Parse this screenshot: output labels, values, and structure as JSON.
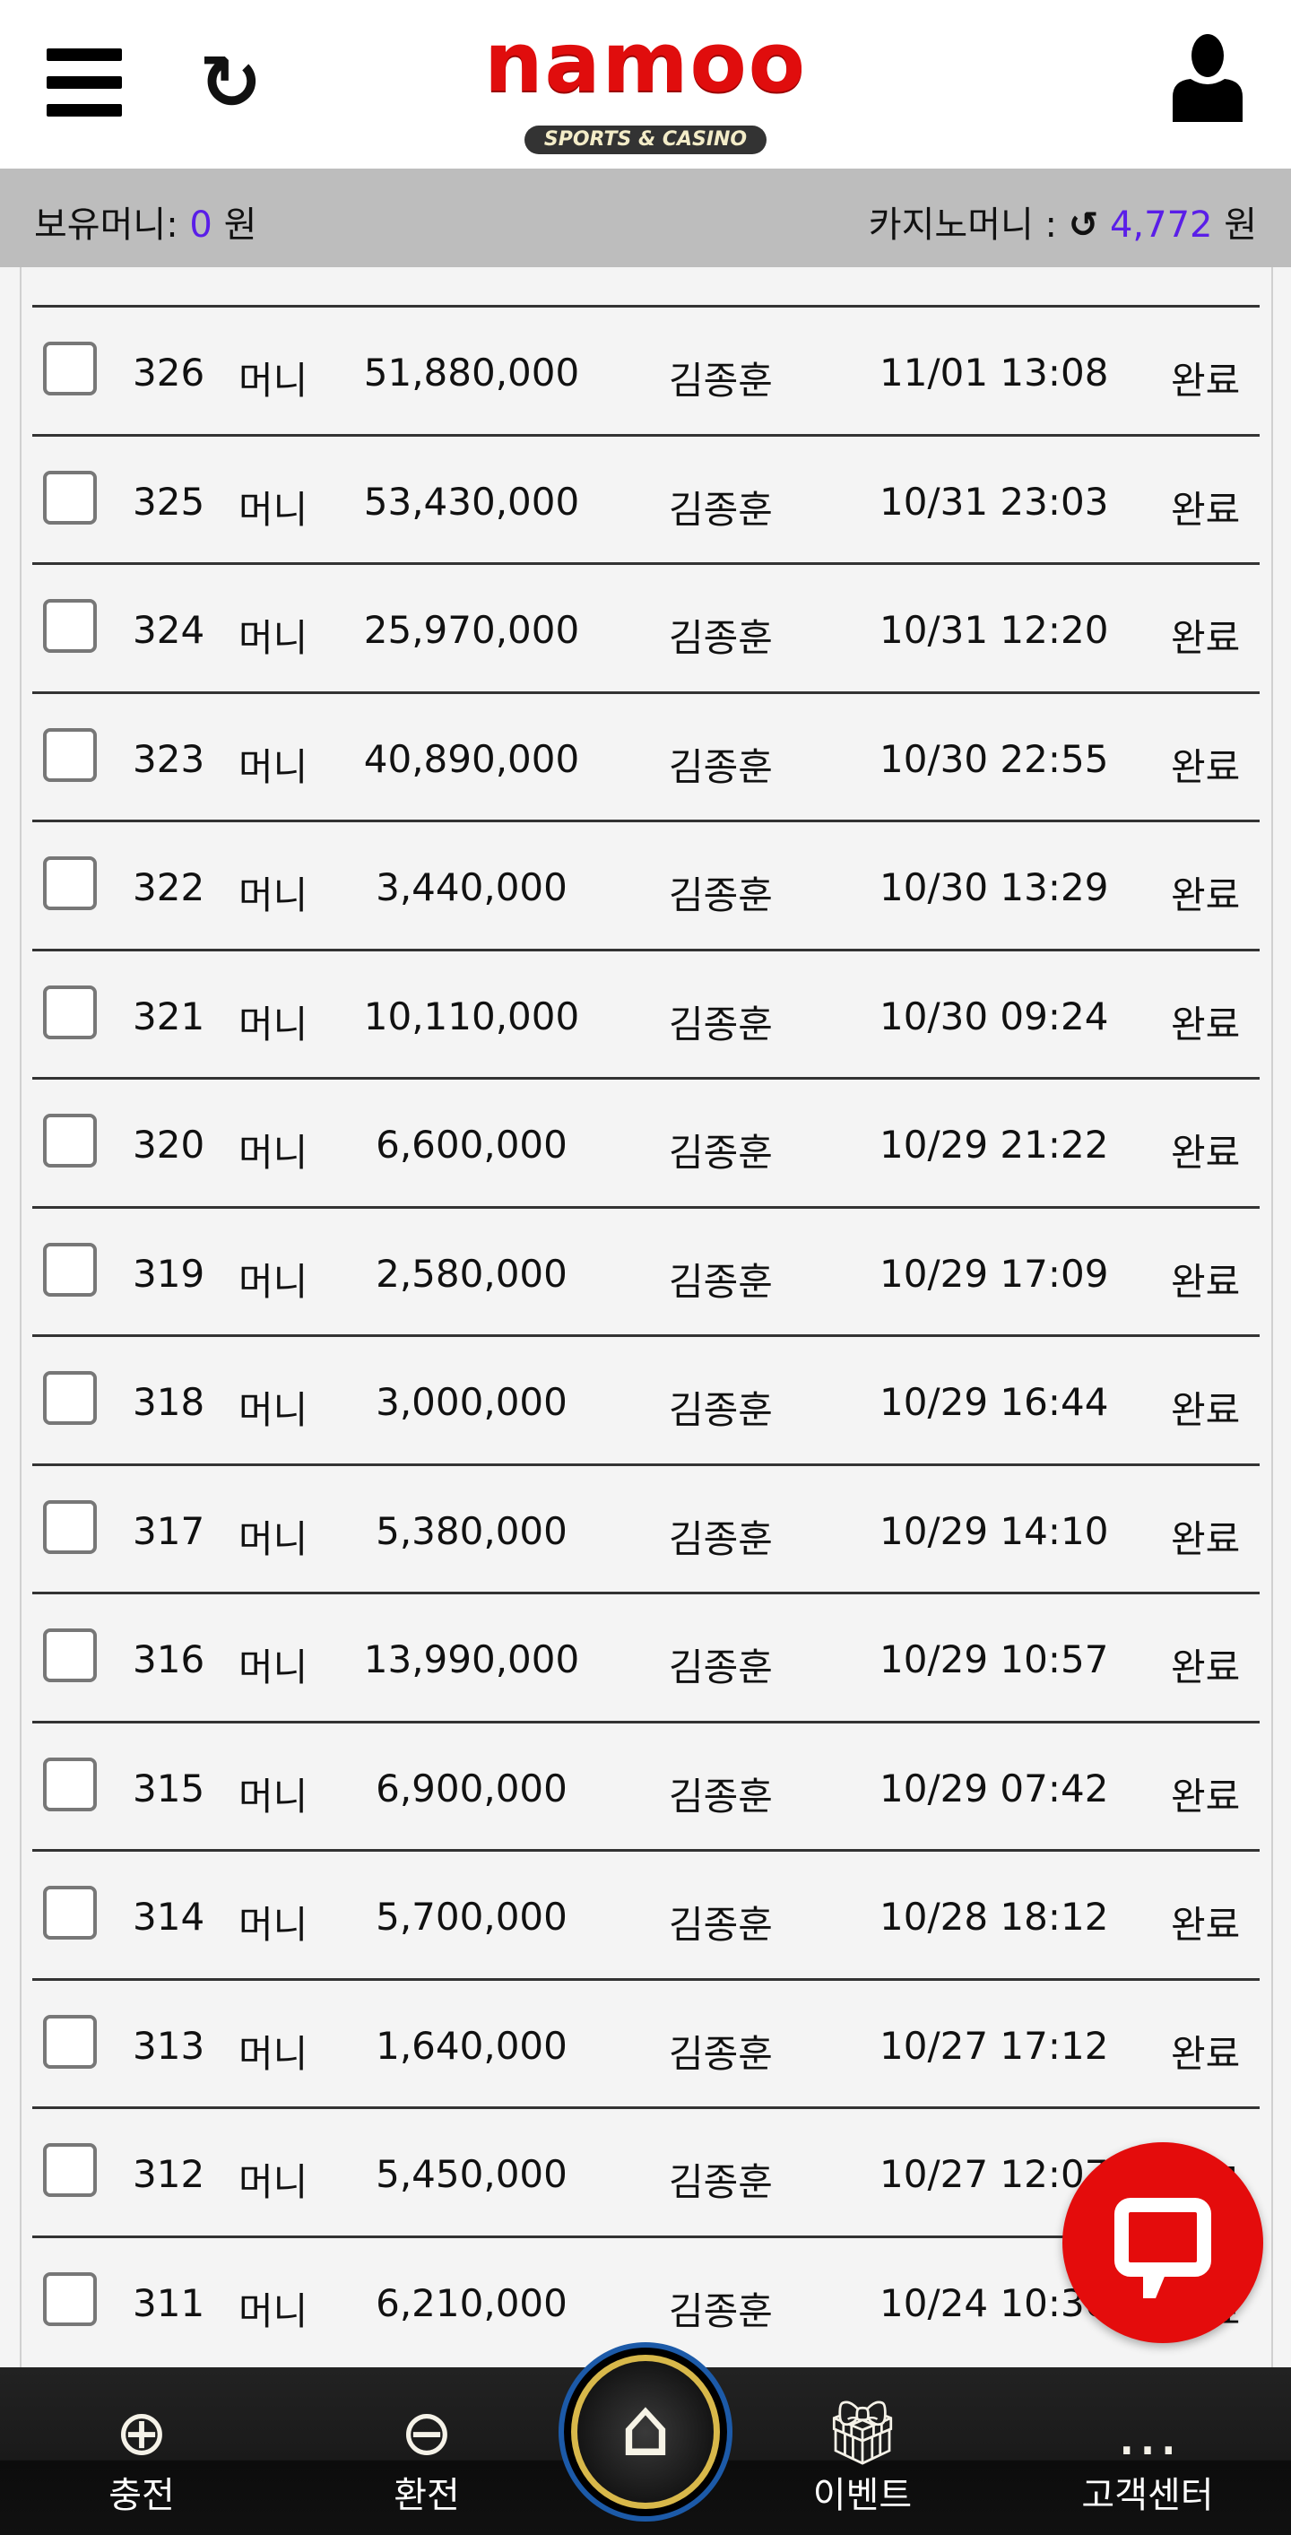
{
  "header": {
    "logo_text": "namoo",
    "logo_sub": "SPORTS & CASINO",
    "menu_icon": "hamburger-icon",
    "refresh_icon": "refresh-icon",
    "user_icon": "user-icon"
  },
  "balance": {
    "held_label": "보유머니:",
    "held_value": "0",
    "held_unit": "원",
    "casino_label": "카지노머니 :",
    "casino_value": "4,772",
    "casino_unit": "원",
    "accent": "#5a1ee8"
  },
  "rows": [
    {
      "no": "326",
      "type": "머니",
      "amount": "51,880,000",
      "name": "김종훈",
      "date": "11/01 13:08",
      "status": "완료"
    },
    {
      "no": "325",
      "type": "머니",
      "amount": "53,430,000",
      "name": "김종훈",
      "date": "10/31 23:03",
      "status": "완료"
    },
    {
      "no": "324",
      "type": "머니",
      "amount": "25,970,000",
      "name": "김종훈",
      "date": "10/31 12:20",
      "status": "완료"
    },
    {
      "no": "323",
      "type": "머니",
      "amount": "40,890,000",
      "name": "김종훈",
      "date": "10/30 22:55",
      "status": "완료"
    },
    {
      "no": "322",
      "type": "머니",
      "amount": "3,440,000",
      "name": "김종훈",
      "date": "10/30 13:29",
      "status": "완료"
    },
    {
      "no": "321",
      "type": "머니",
      "amount": "10,110,000",
      "name": "김종훈",
      "date": "10/30 09:24",
      "status": "완료"
    },
    {
      "no": "320",
      "type": "머니",
      "amount": "6,600,000",
      "name": "김종훈",
      "date": "10/29 21:22",
      "status": "완료"
    },
    {
      "no": "319",
      "type": "머니",
      "amount": "2,580,000",
      "name": "김종훈",
      "date": "10/29 17:09",
      "status": "완료"
    },
    {
      "no": "318",
      "type": "머니",
      "amount": "3,000,000",
      "name": "김종훈",
      "date": "10/29 16:44",
      "status": "완료"
    },
    {
      "no": "317",
      "type": "머니",
      "amount": "5,380,000",
      "name": "김종훈",
      "date": "10/29 14:10",
      "status": "완료"
    },
    {
      "no": "316",
      "type": "머니",
      "amount": "13,990,000",
      "name": "김종훈",
      "date": "10/29 10:57",
      "status": "완료"
    },
    {
      "no": "315",
      "type": "머니",
      "amount": "6,900,000",
      "name": "김종훈",
      "date": "10/29 07:42",
      "status": "완료"
    },
    {
      "no": "314",
      "type": "머니",
      "amount": "5,700,000",
      "name": "김종훈",
      "date": "10/28 18:12",
      "status": "완료"
    },
    {
      "no": "313",
      "type": "머니",
      "amount": "1,640,000",
      "name": "김종훈",
      "date": "10/27 17:12",
      "status": "완료"
    },
    {
      "no": "312",
      "type": "머니",
      "amount": "5,450,000",
      "name": "김종훈",
      "date": "10/27 12:07",
      "status": "완료"
    },
    {
      "no": "311",
      "type": "머니",
      "amount": "6,210,000",
      "name": "김종훈",
      "date": "10/24 10:30",
      "status": "완료"
    }
  ],
  "nav": {
    "deposit": "충전",
    "withdraw": "환전",
    "event": "이벤트",
    "support": "고객센터",
    "home_icon": "home-icon"
  },
  "chat": {
    "icon": "chat-icon",
    "color": "#e40c0c"
  }
}
